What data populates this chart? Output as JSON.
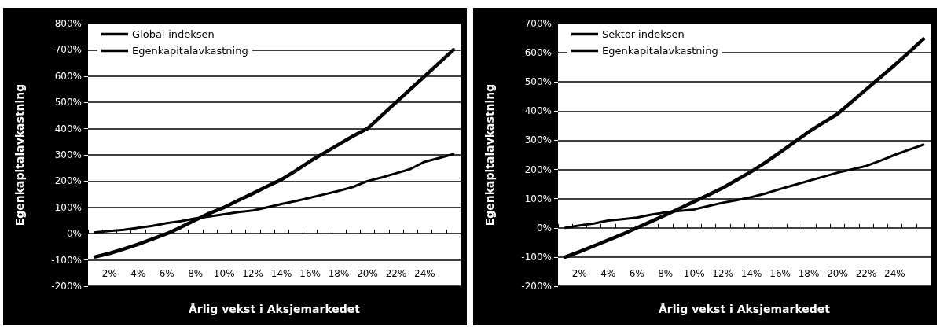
{
  "chart_data": [
    {
      "type": "line",
      "xlabel": "Årlig vekst i Aksjemarkedet",
      "ylabel": "Egenkapitalavkastning",
      "categories": [
        null,
        "2%",
        null,
        "4%",
        null,
        "6%",
        null,
        "8%",
        null,
        "10%",
        null,
        "12%",
        null,
        "14%",
        null,
        "16%",
        null,
        "18%",
        null,
        "20%",
        null,
        "22%",
        null,
        "24%",
        null,
        null
      ],
      "series": [
        {
          "name": "Global-indeksen",
          "color": "#000000",
          "values": [
            5,
            10,
            15,
            22,
            30,
            40,
            48,
            58,
            66,
            74,
            82,
            88,
            100,
            113,
            124,
            137,
            150,
            163,
            178,
            200,
            214,
            230,
            246,
            274,
            288,
            303
          ]
        },
        {
          "name": "Egenkapitalavkastning",
          "color": "#000000",
          "values": [
            -88,
            -75,
            -58,
            -40,
            -20,
            0,
            25,
            52,
            78,
            100,
            127,
            153,
            180,
            206,
            240,
            276,
            308,
            340,
            372,
            400,
            450,
            500,
            550,
            600,
            650,
            700
          ]
        }
      ],
      "ylim": [
        -200,
        800
      ],
      "yticks": [
        {
          "value": -200,
          "label": "-200%"
        },
        {
          "value": -100,
          "label": "-100%"
        },
        {
          "value": 0,
          "label": "0%"
        },
        {
          "value": 100,
          "label": "100%"
        },
        {
          "value": 200,
          "label": "200%"
        },
        {
          "value": 300,
          "label": "300%"
        },
        {
          "value": 400,
          "label": "400%"
        },
        {
          "value": 500,
          "label": "500%"
        },
        {
          "value": 600,
          "label": "600%"
        },
        {
          "value": 700,
          "label": "700%"
        },
        {
          "value": 800,
          "label": "800%"
        }
      ],
      "grid": "y",
      "legend": "top left",
      "marker": "none",
      "line_style": "solid"
    },
    {
      "type": "line",
      "xlabel": "Årlig vekst i Aksjemarkedet",
      "ylabel": "Egenkapitalavkastning",
      "categories": [
        null,
        "2%",
        null,
        "4%",
        null,
        "6%",
        null,
        "8%",
        null,
        "10%",
        null,
        "12%",
        null,
        "14%",
        null,
        "16%",
        null,
        "18%",
        null,
        "20%",
        null,
        "22%",
        null,
        "24%",
        null,
        null
      ],
      "series": [
        {
          "name": "Sektor-indeksen",
          "color": "#000000",
          "values": [
            0,
            8,
            15,
            25,
            30,
            35,
            45,
            53,
            58,
            63,
            75,
            86,
            95,
            105,
            118,
            133,
            147,
            161,
            175,
            189,
            200,
            212,
            230,
            250,
            268,
            285
          ]
        },
        {
          "name": "Egenkapitalavkastning",
          "color": "#000000",
          "values": [
            -100,
            -82,
            -62,
            -42,
            -22,
            0,
            22,
            44,
            67,
            90,
            113,
            137,
            165,
            193,
            225,
            259,
            294,
            329,
            360,
            390,
            432,
            474,
            516,
            558,
            602,
            647
          ]
        }
      ],
      "ylim": [
        -200,
        700
      ],
      "yticks": [
        {
          "value": -200,
          "label": "-200%"
        },
        {
          "value": -100,
          "label": "-100%"
        },
        {
          "value": 0,
          "label": "0%"
        },
        {
          "value": 100,
          "label": "100%"
        },
        {
          "value": 200,
          "label": "200%"
        },
        {
          "value": 300,
          "label": "300%"
        },
        {
          "value": 400,
          "label": "400%"
        },
        {
          "value": 500,
          "label": "500%"
        },
        {
          "value": 600,
          "label": "600%"
        },
        {
          "value": 700,
          "label": "700%"
        }
      ],
      "grid": "y",
      "legend": "top left",
      "marker": "none",
      "line_style": "solid"
    }
  ]
}
